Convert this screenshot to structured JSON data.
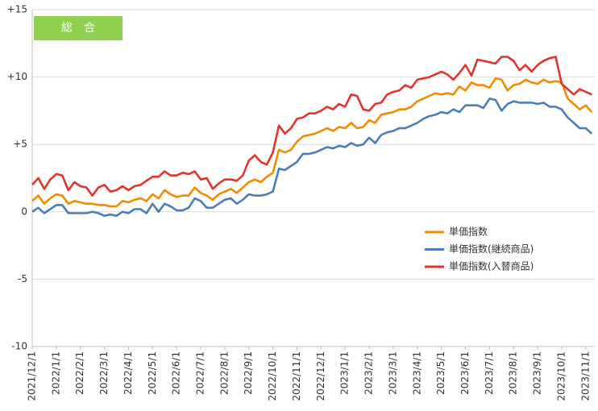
{
  "chart_data": {
    "type": "line",
    "title": "総　合",
    "legend": "right",
    "grid": true,
    "ylim": [
      -10,
      15
    ],
    "yticks": [
      {
        "value": 15,
        "label": "+15"
      },
      {
        "value": 10,
        "label": "+10"
      },
      {
        "value": 5,
        "label": "+5"
      },
      0,
      -5,
      -10
    ],
    "categories": [
      "2021/12/1",
      null,
      null,
      null,
      "2022/1/1",
      null,
      null,
      null,
      "2022/2/1",
      null,
      null,
      null,
      "2022/3/1",
      null,
      null,
      null,
      "2022/4/1",
      null,
      null,
      null,
      "2022/5/1",
      null,
      null,
      null,
      "2022/6/1",
      null,
      null,
      null,
      "2022/7/1",
      null,
      null,
      null,
      "2022/8/1",
      null,
      null,
      null,
      "2022/9/1",
      null,
      null,
      null,
      "2022/10/1",
      null,
      null,
      null,
      "2022/11/1",
      null,
      null,
      null,
      "2022/12/1",
      null,
      null,
      null,
      "2023/1/1",
      null,
      null,
      null,
      "2023/2/1",
      null,
      null,
      null,
      "2023/3/1",
      null,
      null,
      null,
      "2023/4/1",
      null,
      null,
      null,
      "2023/5/1",
      null,
      null,
      null,
      "2023/6/1",
      null,
      null,
      null,
      "2023/7/1",
      null,
      null,
      null,
      "2023/8/1",
      null,
      null,
      null,
      "2023/9/1",
      null,
      null,
      null,
      "2023/10/1",
      null,
      null,
      null,
      "2023/11/1",
      null
    ],
    "series": [
      {
        "name": "単価指数",
        "color": "#f08c00",
        "values": [
          0.8,
          1.2,
          0.6,
          1.0,
          1.3,
          1.2,
          0.6,
          0.8,
          0.7,
          0.6,
          0.6,
          0.5,
          0.5,
          0.4,
          0.4,
          0.8,
          0.7,
          0.9,
          1.0,
          0.8,
          1.3,
          1.0,
          1.6,
          1.3,
          1.1,
          1.2,
          1.2,
          1.8,
          1.4,
          1.2,
          0.9,
          1.3,
          1.5,
          1.7,
          1.4,
          1.8,
          2.2,
          2.4,
          2.2,
          2.6,
          2.9,
          4.6,
          4.4,
          4.6,
          5.2,
          5.6,
          5.7,
          5.8,
          6.0,
          6.2,
          6.0,
          6.3,
          6.2,
          6.6,
          6.2,
          6.3,
          6.8,
          6.6,
          7.2,
          7.3,
          7.4,
          7.6,
          7.6,
          7.8,
          8.2,
          8.4,
          8.6,
          8.8,
          8.7,
          8.8,
          8.7,
          9.3,
          9.0,
          9.6,
          9.4,
          9.4,
          9.2,
          9.9,
          9.8,
          9.0,
          9.4,
          9.5,
          9.8,
          9.6,
          9.5,
          9.8,
          9.6,
          9.7,
          9.6,
          8.4,
          8.0,
          7.6,
          7.9,
          7.4
        ]
      },
      {
        "name": "単価指数(継続商品)",
        "color": "#4a7ebb",
        "values": [
          0.0,
          0.3,
          -0.1,
          0.2,
          0.5,
          0.5,
          -0.1,
          -0.1,
          -0.1,
          -0.1,
          0.0,
          -0.1,
          -0.3,
          -0.2,
          -0.3,
          0.0,
          -0.1,
          0.2,
          0.2,
          -0.1,
          0.6,
          0.0,
          0.6,
          0.4,
          0.1,
          0.1,
          0.3,
          1.0,
          0.8,
          0.3,
          0.3,
          0.6,
          0.9,
          1.0,
          0.6,
          0.9,
          1.3,
          1.2,
          1.2,
          1.3,
          1.5,
          3.2,
          3.1,
          3.4,
          3.7,
          4.3,
          4.3,
          4.4,
          4.6,
          4.8,
          4.7,
          4.9,
          4.8,
          5.1,
          4.9,
          5.0,
          5.5,
          5.1,
          5.7,
          5.9,
          6.0,
          6.2,
          6.2,
          6.4,
          6.6,
          6.9,
          7.1,
          7.2,
          7.4,
          7.3,
          7.6,
          7.4,
          7.9,
          7.9,
          7.9,
          7.7,
          8.4,
          8.3,
          7.5,
          8.0,
          8.2,
          8.1,
          8.1,
          8.1,
          8.0,
          8.1,
          7.8,
          7.8,
          7.6,
          7.0,
          6.6,
          6.2,
          6.2,
          5.8
        ]
      },
      {
        "name": "単価指数(入替商品)",
        "color": "#e0352b",
        "values": [
          2.0,
          2.5,
          1.7,
          2.4,
          2.8,
          2.7,
          1.6,
          2.2,
          1.9,
          1.8,
          1.2,
          1.8,
          2.0,
          1.5,
          1.6,
          1.9,
          1.6,
          1.9,
          2.0,
          2.3,
          2.6,
          2.6,
          3.0,
          2.7,
          2.7,
          2.9,
          2.8,
          3.0,
          2.4,
          2.5,
          1.7,
          2.1,
          2.4,
          2.4,
          2.3,
          2.7,
          3.8,
          4.2,
          3.7,
          3.5,
          4.4,
          6.4,
          5.8,
          6.2,
          6.9,
          7.0,
          7.3,
          7.3,
          7.5,
          7.8,
          7.6,
          8.0,
          7.8,
          8.7,
          8.6,
          7.6,
          7.5,
          8.0,
          8.1,
          8.7,
          8.9,
          9.0,
          9.4,
          9.2,
          9.8,
          9.9,
          10.0,
          10.2,
          10.4,
          10.2,
          9.8,
          10.3,
          10.9,
          10.1,
          11.3,
          11.2,
          11.1,
          11.0,
          11.5,
          11.5,
          11.2,
          10.5,
          10.9,
          10.4,
          10.9,
          11.2,
          11.4,
          11.5,
          9.5,
          9.1,
          8.7,
          9.1,
          8.9,
          8.7
        ]
      }
    ]
  }
}
